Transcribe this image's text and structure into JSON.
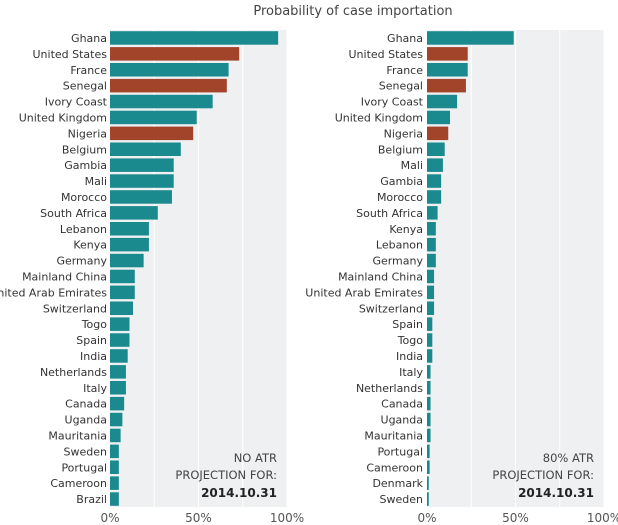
{
  "title": "Probability of case importation",
  "colors": {
    "default": "#1b8a8f",
    "highlight": "#a1442a",
    "panel_bg": "#eef0f2",
    "grid": "#ffffff"
  },
  "chart_data": [
    {
      "type": "bar",
      "orientation": "horizontal",
      "annotation": {
        "line1": "NO ATR",
        "line2": "PROJECTION FOR:",
        "date": "2014.10.31"
      },
      "xlim": [
        0,
        100
      ],
      "xticks": [
        "0%",
        "50%",
        "100%"
      ],
      "grid": true,
      "categories": [
        "Ghana",
        "United States",
        "France",
        "Senegal",
        "Ivory Coast",
        "United Kingdom",
        "Nigeria",
        "Belgium",
        "Gambia",
        "Mali",
        "Morocco",
        "South Africa",
        "Lebanon",
        "Kenya",
        "Germany",
        "Mainland China",
        "United Arab Emirates",
        "Switzerland",
        "Togo",
        "Spain",
        "India",
        "Netherlands",
        "Italy",
        "Canada",
        "Uganda",
        "Mauritania",
        "Sweden",
        "Portugal",
        "Cameroon",
        "Brazil"
      ],
      "values": [
        95,
        73,
        67,
        66,
        58,
        49,
        47,
        40,
        36,
        36,
        35,
        27,
        22,
        22,
        19,
        14,
        14,
        13,
        11,
        11,
        10,
        9,
        9,
        8,
        7,
        6,
        5,
        5,
        5,
        5
      ],
      "highlighted": [
        "United States",
        "Senegal",
        "Nigeria"
      ]
    },
    {
      "type": "bar",
      "orientation": "horizontal",
      "annotation": {
        "line1": "80% ATR",
        "line2": "PROJECTION FOR:",
        "date": "2014.10.31"
      },
      "xlim": [
        0,
        100
      ],
      "xticks": [
        "0%",
        "50%",
        "100%"
      ],
      "grid": true,
      "categories": [
        "Ghana",
        "United States",
        "France",
        "Senegal",
        "Ivory Coast",
        "United Kingdom",
        "Nigeria",
        "Belgium",
        "Mali",
        "Gambia",
        "Morocco",
        "South Africa",
        "Kenya",
        "Lebanon",
        "Germany",
        "Mainland China",
        "United Arab Emirates",
        "Switzerland",
        "Spain",
        "Togo",
        "India",
        "Italy",
        "Netherlands",
        "Canada",
        "Uganda",
        "Mauritania",
        "Portugal",
        "Cameroon",
        "Denmark",
        "Sweden"
      ],
      "values": [
        49,
        23,
        23,
        22,
        17,
        13,
        12,
        10,
        9,
        8,
        8,
        6,
        5,
        5,
        5,
        4,
        4,
        4,
        3,
        3,
        3,
        2,
        2,
        2,
        2,
        2,
        1.5,
        1.5,
        1,
        1
      ],
      "highlighted": [
        "United States",
        "Senegal",
        "Nigeria"
      ]
    }
  ]
}
